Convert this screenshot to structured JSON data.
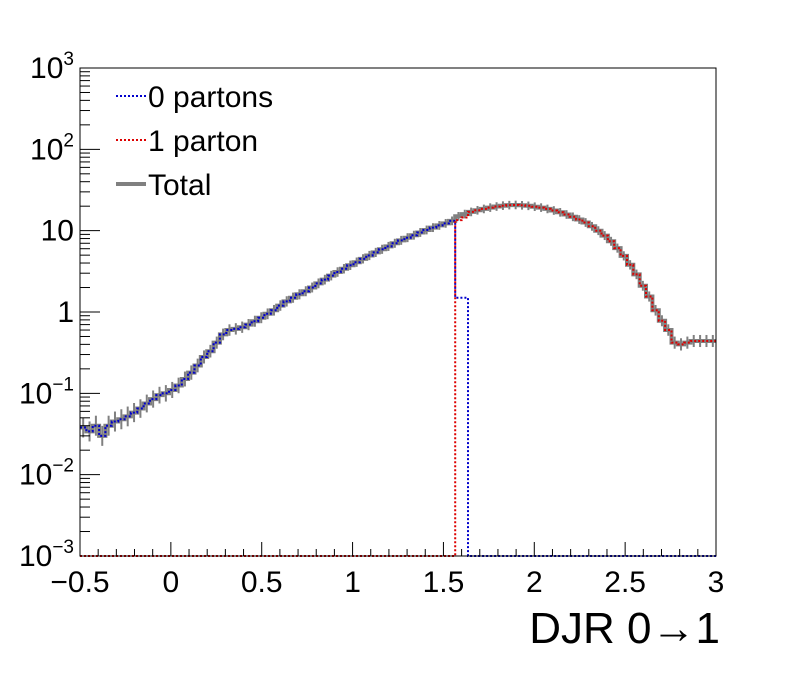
{
  "chart_data": {
    "type": "line",
    "title": "",
    "xlabel": "DJR 0→1",
    "ylabel": "",
    "xlim": [
      -0.5,
      3
    ],
    "ylim": [
      0.001,
      1000
    ],
    "yscale": "log",
    "grid": false,
    "legend_position": "top-left",
    "x_ticks": [
      {
        "value": -0.5,
        "label": "−0.5"
      },
      {
        "value": 0,
        "label": "0"
      },
      {
        "value": 0.5,
        "label": "0.5"
      },
      {
        "value": 1,
        "label": "1"
      },
      {
        "value": 1.5,
        "label": "1.5"
      },
      {
        "value": 2,
        "label": "2"
      },
      {
        "value": 2.5,
        "label": "2.5"
      },
      {
        "value": 3,
        "label": "3"
      }
    ],
    "y_ticks": [
      {
        "value": 1000,
        "base": "10",
        "exp": "3"
      },
      {
        "value": 100,
        "base": "10",
        "exp": "2"
      },
      {
        "value": 10,
        "base": "10",
        "exp": ""
      },
      {
        "value": 1,
        "base": "1",
        "exp": ""
      },
      {
        "value": 0.1,
        "base": "10",
        "exp": "−1"
      },
      {
        "value": 0.01,
        "base": "10",
        "exp": "−2"
      },
      {
        "value": 0.001,
        "base": "10",
        "exp": "−3"
      }
    ],
    "bin_edges_start": -0.5,
    "bin_width": 0.035,
    "series": [
      {
        "name": "Total",
        "color": "#808080",
        "style": "solid",
        "values": [
          0.038,
          0.034,
          0.04,
          0.03,
          0.04,
          0.045,
          0.048,
          0.052,
          0.058,
          0.065,
          0.075,
          0.085,
          0.095,
          0.1,
          0.11,
          0.125,
          0.15,
          0.18,
          0.22,
          0.28,
          0.33,
          0.42,
          0.53,
          0.6,
          0.62,
          0.65,
          0.7,
          0.77,
          0.85,
          0.95,
          1.05,
          1.2,
          1.35,
          1.5,
          1.65,
          1.8,
          2.0,
          2.25,
          2.5,
          2.8,
          3.1,
          3.4,
          3.75,
          4.1,
          4.5,
          4.95,
          5.4,
          5.9,
          6.4,
          7.0,
          7.6,
          8.2,
          8.8,
          9.5,
          10.2,
          10.9,
          11.6,
          12.3,
          13.2,
          15.0,
          16.0,
          17.0,
          17.8,
          18.5,
          19.2,
          19.8,
          20.3,
          20.6,
          20.7,
          20.5,
          20.2,
          19.7,
          19.2,
          18.5,
          17.7,
          16.8,
          15.8,
          14.8,
          13.7,
          12.6,
          11.3,
          10.0,
          8.7,
          7.4,
          6.1,
          4.9,
          3.8,
          2.9,
          2.1,
          1.55,
          1.05,
          0.78,
          0.6,
          0.42,
          0.4,
          0.42,
          0.44,
          0.44,
          0.44,
          0.44
        ]
      },
      {
        "name": "0 partons",
        "color": "#0000cc",
        "style": "dotted",
        "values": [
          0.038,
          0.034,
          0.04,
          0.03,
          0.04,
          0.045,
          0.048,
          0.052,
          0.058,
          0.065,
          0.075,
          0.085,
          0.095,
          0.1,
          0.11,
          0.125,
          0.15,
          0.18,
          0.22,
          0.28,
          0.33,
          0.42,
          0.53,
          0.6,
          0.62,
          0.65,
          0.7,
          0.77,
          0.85,
          0.95,
          1.05,
          1.2,
          1.35,
          1.5,
          1.65,
          1.8,
          2.0,
          2.25,
          2.5,
          2.8,
          3.1,
          3.4,
          3.75,
          4.1,
          4.5,
          4.95,
          5.4,
          5.9,
          6.4,
          7.0,
          7.6,
          8.2,
          8.8,
          9.5,
          10.2,
          10.9,
          11.6,
          12.3,
          13.2,
          1.5,
          1.5,
          0.001,
          0.001,
          0.001,
          0.001,
          0.001,
          0.001,
          0.001,
          0.001,
          0.001,
          0.001,
          0.001,
          0.001,
          0.001,
          0.001,
          0.001,
          0.001,
          0.001,
          0.001,
          0.001,
          0.001,
          0.001,
          0.001,
          0.001,
          0.001,
          0.001,
          0.001,
          0.001,
          0.001,
          0.001,
          0.001,
          0.001,
          0.001,
          0.001,
          0.001,
          0.001,
          0.001,
          0.001,
          0.001,
          0.001
        ]
      },
      {
        "name": "1 parton",
        "color": "#dd0000",
        "style": "dotted",
        "values": [
          0.001,
          0.001,
          0.001,
          0.001,
          0.001,
          0.001,
          0.001,
          0.001,
          0.001,
          0.001,
          0.001,
          0.001,
          0.001,
          0.001,
          0.001,
          0.001,
          0.001,
          0.001,
          0.001,
          0.001,
          0.001,
          0.001,
          0.001,
          0.001,
          0.001,
          0.001,
          0.001,
          0.001,
          0.001,
          0.001,
          0.001,
          0.001,
          0.001,
          0.001,
          0.001,
          0.001,
          0.001,
          0.001,
          0.001,
          0.001,
          0.001,
          0.001,
          0.001,
          0.001,
          0.001,
          0.001,
          0.001,
          0.001,
          0.001,
          0.001,
          0.001,
          0.001,
          0.001,
          0.001,
          0.001,
          0.001,
          0.001,
          0.001,
          0.001,
          13.5,
          14.5,
          17.0,
          17.8,
          18.5,
          19.2,
          19.8,
          20.3,
          20.6,
          20.7,
          20.5,
          20.2,
          19.7,
          19.2,
          18.5,
          17.7,
          16.8,
          15.8,
          14.8,
          13.7,
          12.6,
          11.3,
          10.0,
          8.7,
          7.4,
          6.1,
          4.9,
          3.8,
          2.9,
          2.1,
          1.55,
          1.05,
          0.78,
          0.6,
          0.42,
          0.4,
          0.42,
          0.44,
          0.44,
          0.44,
          0.44
        ]
      }
    ],
    "legend": [
      {
        "label": "0 partons",
        "color": "#0000cc",
        "style": "dotted"
      },
      {
        "label": "1 parton",
        "color": "#dd0000",
        "style": "dotted"
      },
      {
        "label": "Total",
        "color": "#808080",
        "style": "solid"
      }
    ]
  }
}
